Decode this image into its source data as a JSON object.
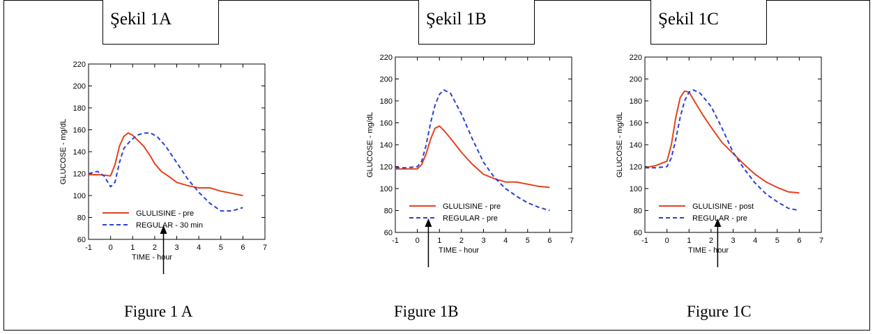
{
  "panels": [
    {
      "sekil_label": "Şekil 1A",
      "figure_caption": "Figure 1 A"
    },
    {
      "sekil_label": "Şekil 1B",
      "figure_caption": "Figure 1B"
    },
    {
      "sekil_label": "Şekil 1C",
      "figure_caption": "Figure 1C"
    }
  ],
  "colors": {
    "glulisine": "#e8401c",
    "regular": "#2a3fd6",
    "axes": "#000000"
  },
  "chart_data": [
    {
      "type": "line",
      "xlabel": "TIME - hour",
      "ylabel": "GLUCOSE - mg/dL",
      "xlim": [
        -1,
        7
      ],
      "ylim": [
        60,
        220
      ],
      "xticks": [
        "-1",
        "0",
        "1",
        "2",
        "3",
        "4",
        "5",
        "6",
        "7"
      ],
      "yticks": [
        "60",
        "80",
        "100",
        "120",
        "140",
        "160",
        "180",
        "200",
        "220"
      ],
      "grid": false,
      "legend_position": "bottom-center",
      "arrow_at_x": 2.4,
      "series": [
        {
          "name": "GLULISINE - pre",
          "color": "#e8401c",
          "dash": "solid",
          "x": [
            -1,
            -0.5,
            0,
            0.2,
            0.4,
            0.6,
            0.8,
            1.0,
            1.2,
            1.5,
            1.8,
            2.0,
            2.3,
            2.6,
            3.0,
            3.5,
            4.0,
            4.5,
            5.0,
            5.5,
            6.0
          ],
          "y": [
            119,
            119,
            118,
            128,
            145,
            154,
            157,
            155,
            151,
            145,
            136,
            129,
            122,
            118,
            112,
            109,
            107,
            107,
            104,
            102,
            100
          ]
        },
        {
          "name": "REGULAR - 30 min",
          "color": "#2a3fd6",
          "dash": "dashed",
          "x": [
            -1,
            -0.6,
            -0.3,
            0,
            0.2,
            0.4,
            0.6,
            0.9,
            1.2,
            1.5,
            1.8,
            2.1,
            2.5,
            3.0,
            3.5,
            4.0,
            4.5,
            5.0,
            5.5,
            6.0
          ],
          "y": [
            120,
            122,
            118,
            108,
            112,
            130,
            143,
            150,
            155,
            157,
            157,
            154,
            145,
            130,
            115,
            103,
            93,
            86,
            86,
            89
          ]
        }
      ]
    },
    {
      "type": "line",
      "xlabel": "TIME - hour",
      "ylabel": "GLUCOSE - mg/dL",
      "xlim": [
        -1,
        7
      ],
      "ylim": [
        60,
        220
      ],
      "xticks": [
        "-1",
        "0",
        "1",
        "2",
        "3",
        "4",
        "5",
        "6",
        "7"
      ],
      "yticks": [
        "60",
        "80",
        "100",
        "120",
        "140",
        "160",
        "180",
        "200",
        "220"
      ],
      "grid": false,
      "legend_position": "bottom-center",
      "arrow_at_x": 0.5,
      "series": [
        {
          "name": "GLULISINE - pre",
          "color": "#e8401c",
          "dash": "solid",
          "x": [
            -1,
            -0.5,
            0,
            0.2,
            0.4,
            0.6,
            0.8,
            1.0,
            1.2,
            1.5,
            2.0,
            2.5,
            3.0,
            3.5,
            4.0,
            4.5,
            5.0,
            5.5,
            6.0
          ],
          "y": [
            118,
            118,
            118,
            122,
            132,
            145,
            155,
            157,
            153,
            146,
            133,
            122,
            113,
            109,
            106,
            106,
            104,
            102,
            101
          ]
        },
        {
          "name": "REGULAR - pre",
          "color": "#2a3fd6",
          "dash": "dashed",
          "x": [
            -1,
            -0.5,
            0,
            0.2,
            0.4,
            0.6,
            0.8,
            1.0,
            1.2,
            1.5,
            2.0,
            2.5,
            3.0,
            3.5,
            4.0,
            4.5,
            5.0,
            5.5,
            6.0
          ],
          "y": [
            119,
            119,
            120,
            125,
            140,
            160,
            176,
            186,
            190,
            187,
            168,
            145,
            124,
            110,
            100,
            93,
            87,
            83,
            80
          ]
        }
      ]
    },
    {
      "type": "line",
      "xlabel": "TIME - hour",
      "ylabel": "GLUCOSE - mg/dL",
      "xlim": [
        -1,
        7
      ],
      "ylim": [
        60,
        220
      ],
      "xticks": [
        "-1",
        "0",
        "1",
        "2",
        "3",
        "4",
        "5",
        "6",
        "7"
      ],
      "yticks": [
        "60",
        "80",
        "100",
        "120",
        "140",
        "160",
        "180",
        "200",
        "220"
      ],
      "grid": false,
      "legend_position": "bottom-center",
      "arrow_at_x": 2.3,
      "series": [
        {
          "name": "GLULISINE - post",
          "color": "#e8401c",
          "dash": "solid",
          "x": [
            -1,
            -0.5,
            0,
            0.2,
            0.4,
            0.6,
            0.8,
            1.0,
            1.3,
            1.6,
            2.0,
            2.5,
            3.0,
            3.5,
            4.0,
            4.5,
            5.0,
            5.5,
            6.0
          ],
          "y": [
            119,
            121,
            125,
            140,
            165,
            183,
            189,
            188,
            178,
            168,
            156,
            142,
            132,
            122,
            113,
            106,
            101,
            97,
            96
          ]
        },
        {
          "name": "REGULAR - pre",
          "color": "#2a3fd6",
          "dash": "dashed",
          "x": [
            -1,
            -0.5,
            0,
            0.2,
            0.4,
            0.6,
            0.8,
            1.0,
            1.2,
            1.5,
            2.0,
            2.5,
            3.0,
            3.5,
            4.0,
            4.5,
            5.0,
            5.5,
            6.0
          ],
          "y": [
            119,
            119,
            120,
            128,
            145,
            165,
            180,
            188,
            190,
            187,
            175,
            155,
            133,
            118,
            105,
            95,
            88,
            82,
            80
          ]
        }
      ]
    }
  ]
}
